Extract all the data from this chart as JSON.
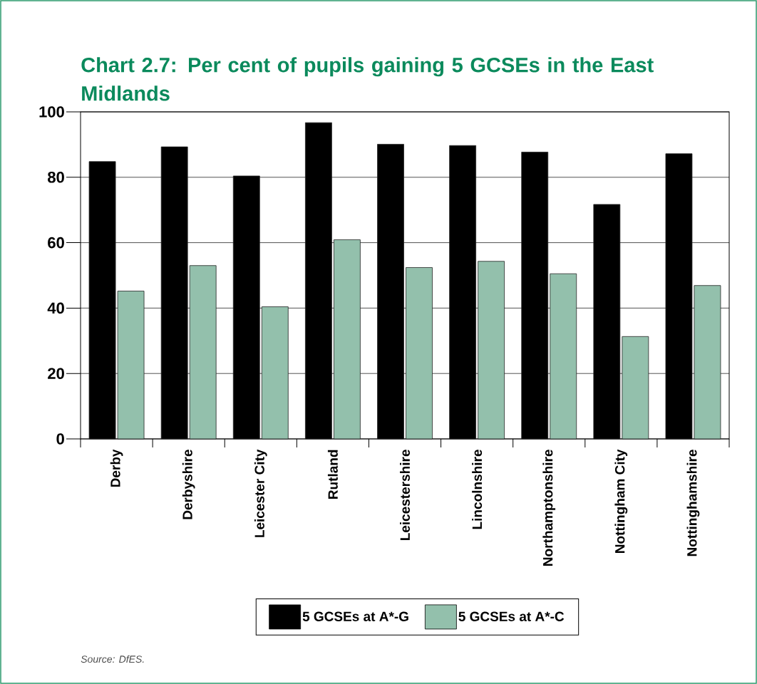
{
  "chart_data": {
    "type": "bar",
    "title": "Chart 2.7: Per cent of pupils gaining 5 GCSEs in the East Midlands",
    "categories": [
      "Derby",
      "Derbyshire",
      "Leicester City",
      "Rutland",
      "Leicestershire",
      "Lincolnshire",
      "Northamptonshire",
      "Nottingham City",
      "Nottinghamshire"
    ],
    "series": [
      {
        "name": "5 GCSEs at A*-G",
        "color": "#000000",
        "values": [
          84.8,
          89.3,
          80.4,
          96.7,
          90.1,
          89.7,
          87.7,
          71.7,
          87.2
        ]
      },
      {
        "name": "5 GCSEs at A*-C",
        "color": "#93c0ac",
        "values": [
          45.2,
          53.0,
          40.4,
          60.9,
          52.4,
          54.3,
          50.5,
          31.3,
          46.9
        ]
      }
    ],
    "ylim": [
      0,
      100
    ],
    "yticks": [
      0,
      20,
      40,
      60,
      80,
      100
    ],
    "grid": "y",
    "legend": "bottom",
    "annotations": [
      "Source: DfES."
    ]
  }
}
